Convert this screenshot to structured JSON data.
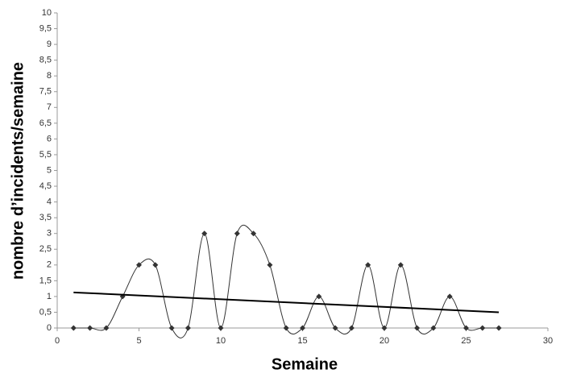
{
  "chart_data": {
    "type": "line",
    "x_label": "Semaine",
    "y_label": "nombre d’incidents/semaine",
    "x": [
      1,
      2,
      3,
      4,
      5,
      6,
      7,
      8,
      9,
      10,
      11,
      12,
      13,
      14,
      15,
      16,
      17,
      18,
      19,
      20,
      21,
      22,
      23,
      24,
      25,
      26,
      27
    ],
    "series": [
      {
        "color": "#333333",
        "values": [
          0,
          0,
          0,
          1,
          2,
          2,
          0,
          0,
          3,
          0,
          3,
          3,
          2,
          0,
          0,
          1,
          0,
          0,
          2,
          0,
          2,
          0,
          0,
          1,
          0,
          0,
          0
        ]
      }
    ],
    "trendline": {
      "color": "#000000",
      "x": [
        1,
        27
      ],
      "values": [
        1.13,
        0.5
      ]
    },
    "xlim": [
      0,
      30
    ],
    "xticks": [
      0,
      5,
      10,
      15,
      20,
      25,
      30
    ],
    "ylim": [
      0,
      10
    ],
    "yticks": [
      0,
      {
        "value": 0.5,
        "label": "0,5"
      },
      1,
      {
        "value": 1.5,
        "label": "1,5"
      },
      2,
      {
        "value": 2.5,
        "label": "2,5"
      },
      3,
      {
        "value": 3.5,
        "label": "3,5"
      },
      4,
      {
        "value": 4.5,
        "label": "4,5"
      },
      5,
      {
        "value": 5.5,
        "label": "5,5"
      },
      6,
      {
        "value": 6.5,
        "label": "6,5"
      },
      7,
      {
        "value": 7.5,
        "label": "7,5"
      },
      8,
      {
        "value": 8.5,
        "label": "8,5"
      },
      9,
      {
        "value": 9.5,
        "label": "9,5"
      },
      10
    ],
    "smooth": true
  }
}
